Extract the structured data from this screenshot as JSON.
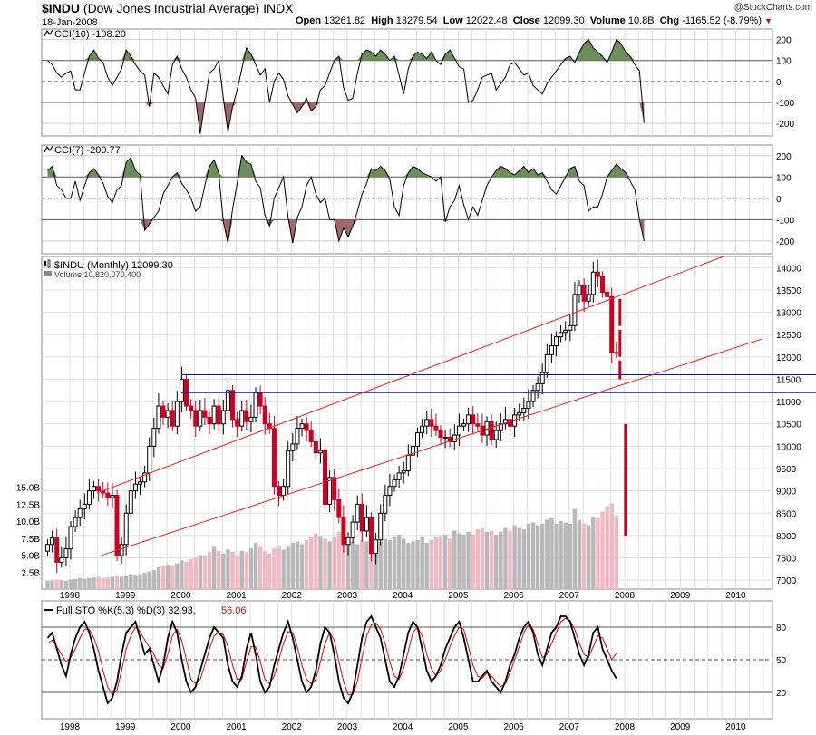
{
  "header": {
    "symbol": "$INDU",
    "name": "(Dow Jones Industrial Average)",
    "exchange": "INDX",
    "date": "18-Jan-2008",
    "watermark": "@StockCharts.com",
    "quote": {
      "open_label": "Open",
      "open": "13261.82",
      "high_label": "High",
      "high": "13279.54",
      "low_label": "Low",
      "low": "12022.48",
      "close_label": "Close",
      "close": "12099.30",
      "volume_label": "Volume",
      "volume": "10.8B",
      "chg_label": "Chg",
      "chg": "-1165.52 (-8.79%)",
      "chg_color": "#cc0033"
    }
  },
  "chart_data": [
    {
      "type": "line",
      "title": "CCI(10) -198.20",
      "ylim": [
        -260,
        250
      ],
      "yticks": [
        "200",
        "100",
        "0",
        "-100",
        "-200"
      ],
      "x_start_year": 1997.6,
      "values": [
        100,
        80,
        40,
        20,
        40,
        50,
        -40,
        -40,
        40,
        120,
        150,
        110,
        90,
        20,
        -20,
        20,
        60,
        150,
        120,
        80,
        50,
        30,
        -120,
        40,
        20,
        -20,
        -60,
        80,
        120,
        60,
        20,
        -40,
        -80,
        -250,
        -100,
        40,
        60,
        100,
        -80,
        -240,
        -120,
        -40,
        60,
        160,
        130,
        80,
        30,
        60,
        -100,
        0,
        40,
        10,
        -70,
        -110,
        -150,
        -120,
        -80,
        -140,
        -120,
        -40,
        -20,
        40,
        100,
        120,
        -30,
        -90,
        -80,
        40,
        130,
        150,
        140,
        120,
        150,
        130,
        100,
        120,
        30,
        -60,
        60,
        120,
        140,
        130,
        110,
        140,
        100,
        80,
        130,
        150,
        110,
        70,
        60,
        -100,
        -90,
        -40,
        20,
        30,
        40,
        -40,
        -10,
        20,
        80,
        90,
        60,
        30,
        40,
        -20,
        -40,
        -60,
        -10,
        20,
        50,
        80,
        110,
        120,
        90,
        140,
        180,
        200,
        160,
        140,
        120,
        90,
        140,
        200,
        180,
        140,
        120,
        80,
        50,
        -198.2
      ],
      "upper_fill": "#6b8e5a",
      "lower_fill": "#a06868"
    },
    {
      "type": "line",
      "title": "CCI(7) -200.77",
      "ylim": [
        -260,
        250
      ],
      "yticks": [
        "200",
        "100",
        "0",
        "-100",
        "-200"
      ],
      "x_start_year": 1997.6,
      "values": [
        130,
        150,
        60,
        40,
        0,
        0,
        80,
        -10,
        60,
        120,
        140,
        110,
        70,
        10,
        -20,
        40,
        60,
        170,
        190,
        130,
        110,
        -150,
        -120,
        -90,
        -60,
        20,
        60,
        100,
        120,
        70,
        40,
        0,
        -60,
        -40,
        60,
        150,
        180,
        120,
        -110,
        -210,
        -50,
        70,
        200,
        170,
        160,
        80,
        50,
        -80,
        -130,
        0,
        50,
        100,
        -90,
        -210,
        -90,
        -40,
        60,
        100,
        20,
        -20,
        0,
        -100,
        -100,
        -200,
        -140,
        -180,
        -130,
        -60,
        20,
        70,
        140,
        130,
        150,
        130,
        90,
        -40,
        -80,
        60,
        120,
        150,
        140,
        120,
        110,
        100,
        80,
        100,
        -110,
        -40,
        -10,
        60,
        -30,
        -100,
        -40,
        -80,
        -10,
        60,
        100,
        130,
        150,
        140,
        120,
        110,
        130,
        150,
        120,
        140,
        110,
        120,
        80,
        40,
        20,
        60,
        100,
        140,
        150,
        80,
        60,
        -60,
        -40,
        -40,
        20,
        100,
        130,
        160,
        140,
        120,
        80,
        40,
        -100,
        -200.77
      ],
      "upper_fill": "#6b8e5a",
      "lower_fill": "#a06868"
    },
    {
      "type": "candlestick",
      "title": "$INDU (Monthly) 12099.30",
      "subtitle": "Volume 10,820,070,400",
      "ylim": [
        6800,
        14250
      ],
      "yticks": [
        "14000",
        "13500",
        "13000",
        "12500",
        "12000",
        "11500",
        "11000",
        "10500",
        "10000",
        "9500",
        "9000",
        "8500",
        "8000",
        "7500",
        "7000"
      ],
      "ytick_values": [
        14000,
        13500,
        13000,
        12500,
        12000,
        11500,
        11000,
        10500,
        10000,
        9500,
        9000,
        8500,
        8000,
        7500,
        7000
      ],
      "volume_label_ticks": [
        "15.0B",
        "12.5B",
        "10.0B",
        "7.5B",
        "5.0B",
        "2.5B"
      ],
      "volume_label_values": [
        15,
        12.5,
        10,
        7.5,
        5,
        2.5
      ],
      "x_start_year": 1997.6,
      "closes": [
        7800,
        7950,
        7400,
        7500,
        7700,
        8200,
        8400,
        8600,
        8700,
        9000,
        9100,
        9000,
        8950,
        8850,
        8900,
        7550,
        7800,
        8500,
        9000,
        9150,
        9200,
        9400,
        10000,
        10400,
        10900,
        10650,
        10800,
        10450,
        11000,
        11500,
        10900,
        10800,
        10450,
        10800,
        10650,
        10500,
        10900,
        10500,
        10800,
        11250,
        10600,
        10450,
        10800,
        10550,
        10650,
        11200,
        10900,
        10500,
        10400,
        9100,
        8900,
        9100,
        9900,
        10050,
        10400,
        10500,
        10350,
        10100,
        9850,
        9900,
        8700,
        9300,
        8800,
        8400,
        7800,
        7950,
        8300,
        8700,
        8100,
        8400,
        7600,
        7900,
        8500,
        8900,
        9100,
        9250,
        9400,
        9450,
        9800,
        10000,
        10300,
        10450,
        10600,
        10450,
        10350,
        10200,
        10200,
        10100,
        10250,
        10450,
        10500,
        10700,
        10500,
        10450,
        10250,
        10550,
        10150,
        10350,
        10500,
        10600,
        10450,
        10700,
        10750,
        10850,
        11000,
        11250,
        11400,
        11650,
        12050,
        12250,
        12450,
        12550,
        12600,
        12700,
        13400,
        13600,
        13250,
        13400,
        13900,
        13800,
        13450,
        13350,
        12100,
        12099.3
      ],
      "bars_from_index": 0,
      "resistance_lines": [
        11600,
        11200
      ],
      "volumes_B": [
        1.2,
        1.3,
        1.4,
        1.3,
        1.2,
        1.4,
        1.5,
        1.6,
        1.5,
        1.6,
        1.7,
        1.8,
        1.6,
        1.7,
        1.8,
        1.9,
        1.8,
        1.9,
        2.0,
        2.1,
        2.2,
        2.4,
        2.6,
        2.8,
        3.2,
        3.4,
        3.6,
        3.5,
        3.8,
        4.2,
        4.0,
        4.4,
        4.6,
        5.0,
        4.8,
        5.4,
        6.2,
        5.6,
        5.2,
        5.8,
        5.5,
        5.0,
        5.6,
        5.4,
        6.0,
        6.8,
        6.2,
        5.6,
        5.2,
        6.0,
        6.4,
        5.8,
        6.2,
        6.8,
        7.0,
        6.6,
        7.2,
        7.6,
        8.2,
        7.8,
        7.4,
        7.0,
        7.6,
        8.4,
        7.8,
        7.6,
        7.0,
        6.6,
        7.2,
        7.0,
        6.4,
        6.8,
        7.0,
        7.4,
        7.2,
        7.6,
        8.0,
        7.4,
        6.8,
        7.0,
        7.2,
        7.6,
        6.8,
        7.2,
        7.6,
        7.8,
        8.0,
        7.4,
        8.6,
        8.2,
        8.0,
        8.4,
        8.0,
        8.8,
        9.0,
        8.4,
        8.6,
        8.0,
        8.4,
        9.0,
        8.6,
        9.4,
        9.0,
        8.8,
        9.6,
        9.8,
        9.4,
        9.6,
        10.2,
        10.4,
        9.6,
        10.0,
        9.8,
        9.6,
        11.8,
        10.2,
        9.6,
        9.4,
        10.6,
        10.4,
        11.4,
        12.2,
        12.6,
        10.8
      ],
      "volume_ylim": [
        0,
        16
      ]
    },
    {
      "type": "line",
      "title": "Full STO %K(5,3) %D(3) 32.93, 56.06",
      "k_label": "Full STO %K(5,3) %D(3) 32.93,",
      "d_label": "56.06",
      "ylim": [
        0,
        100
      ],
      "yticks": [
        "80",
        "50",
        "20"
      ],
      "ytick_values": [
        80,
        50,
        20
      ],
      "x_start_year": 1997.6,
      "k_values": [
        70,
        75,
        60,
        45,
        35,
        55,
        70,
        80,
        85,
        75,
        60,
        40,
        25,
        10,
        15,
        30,
        55,
        75,
        80,
        85,
        70,
        55,
        60,
        45,
        30,
        45,
        70,
        85,
        75,
        50,
        30,
        20,
        25,
        40,
        55,
        70,
        80,
        75,
        70,
        45,
        30,
        25,
        35,
        60,
        75,
        55,
        30,
        20,
        25,
        45,
        60,
        75,
        85,
        70,
        50,
        30,
        20,
        25,
        40,
        65,
        80,
        75,
        55,
        30,
        15,
        10,
        20,
        45,
        70,
        85,
        90,
        80,
        70,
        50,
        30,
        25,
        35,
        55,
        75,
        85,
        80,
        60,
        40,
        30,
        35,
        45,
        60,
        70,
        80,
        85,
        70,
        50,
        30,
        30,
        35,
        40,
        30,
        25,
        20,
        30,
        45,
        55,
        70,
        80,
        85,
        75,
        55,
        45,
        60,
        75,
        80,
        90,
        90,
        85,
        70,
        55,
        45,
        55,
        75,
        80,
        60,
        50,
        40,
        32.93
      ],
      "d_values": [
        65,
        68,
        62,
        55,
        48,
        52,
        60,
        70,
        78,
        78,
        70,
        58,
        40,
        25,
        18,
        22,
        40,
        60,
        72,
        80,
        76,
        68,
        62,
        55,
        45,
        42,
        55,
        72,
        78,
        68,
        50,
        32,
        28,
        32,
        45,
        60,
        72,
        75,
        73,
        62,
        45,
        32,
        32,
        48,
        62,
        62,
        48,
        32,
        28,
        35,
        50,
        65,
        76,
        75,
        62,
        45,
        32,
        28,
        32,
        48,
        65,
        75,
        68,
        48,
        30,
        18,
        18,
        30,
        52,
        72,
        82,
        84,
        78,
        65,
        48,
        35,
        32,
        42,
        58,
        75,
        80,
        72,
        55,
        42,
        35,
        40,
        50,
        62,
        72,
        80,
        78,
        62,
        45,
        35,
        33,
        38,
        35,
        30,
        25,
        28,
        38,
        50,
        62,
        75,
        82,
        78,
        65,
        52,
        55,
        65,
        75,
        85,
        88,
        86,
        78,
        65,
        55,
        52,
        62,
        72,
        70,
        60,
        50,
        56.06
      ],
      "k_color": "#000000",
      "d_color": "#ee0000"
    }
  ],
  "xaxis": {
    "labels": [
      "1998",
      "1999",
      "2000",
      "2001",
      "2002",
      "2003",
      "2004",
      "2005",
      "2006",
      "2007",
      "2008",
      "2009",
      "2010"
    ],
    "years": [
      1998,
      1999,
      2000,
      2001,
      2002,
      2003,
      2004,
      2005,
      2006,
      2007,
      2008,
      2009,
      2010
    ]
  },
  "colors": {
    "up_candle": "#000000",
    "down_candle": "#cc0022",
    "trend_line": "#ee2222",
    "resistance_line": "#1111aa",
    "volume_up": "#b8b8b8",
    "volume_down": "#f0b8c0",
    "grid": "#dddddd"
  }
}
